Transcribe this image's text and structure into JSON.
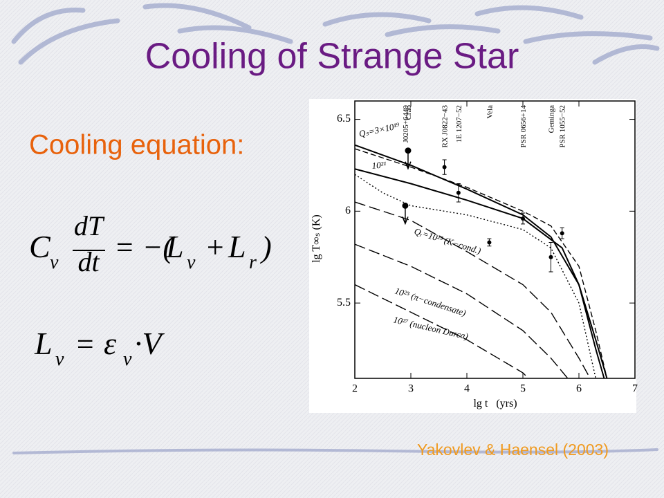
{
  "title": "Cooling of Strange Star",
  "subtitle": "Cooling equation:",
  "equations": [
    [
      "C",
      "v",
      "dT",
      "dt",
      "= −(",
      "L",
      "v",
      "+",
      "L",
      "r",
      ")"
    ],
    [
      "L",
      "v",
      "=",
      "ε",
      "v",
      "·V"
    ]
  ],
  "citation": "Yakovlev & Haensel (2003)",
  "chart_data": {
    "type": "line",
    "x_label": "lg t   (yrs)",
    "y_label": "lg T∞ₛ (K)",
    "xlim": [
      2,
      7
    ],
    "xticks": [
      2,
      3,
      4,
      5,
      6,
      7
    ],
    "ylim": [
      5.09,
      6.6
    ],
    "yticks": [
      5.5,
      6,
      6.5
    ],
    "series": [
      {
        "name": "Qₛ=3×10¹⁹",
        "style": "solid",
        "x": [
          2,
          3,
          4,
          5,
          5.5,
          6,
          6.3,
          6.5
        ],
        "values": [
          6.36,
          6.25,
          6.12,
          5.98,
          5.86,
          5.6,
          5.3,
          5.09
        ]
      },
      {
        "style": "dashed",
        "x": [
          2,
          3,
          4,
          5,
          5.5,
          6,
          6.3,
          6.5
        ],
        "values": [
          6.34,
          6.24,
          6.13,
          6.0,
          5.92,
          5.7,
          5.35,
          5.09
        ]
      },
      {
        "name": "10²¹",
        "style": "solid",
        "x": [
          2,
          3,
          4,
          5,
          5.7,
          6,
          6.3,
          6.45
        ],
        "values": [
          6.23,
          6.15,
          6.06,
          5.96,
          5.8,
          5.6,
          5.25,
          5.09
        ]
      },
      {
        "style": "dotted",
        "x": [
          2,
          2.5,
          3,
          4,
          5,
          5.5,
          6,
          6.3
        ],
        "values": [
          6.2,
          6.1,
          6.03,
          5.98,
          5.9,
          5.8,
          5.5,
          5.09
        ]
      },
      {
        "name": "Qᵣ=10²³ (K−cond.)",
        "style": "longdash",
        "x": [
          2,
          3,
          4,
          5,
          5.5,
          6,
          6.2
        ],
        "values": [
          6.05,
          5.95,
          5.78,
          5.6,
          5.45,
          5.2,
          5.09
        ]
      },
      {
        "name": "10²⁵ (π−condensate)",
        "style": "longdash",
        "x": [
          2,
          3,
          4,
          5,
          5.5,
          5.8
        ],
        "values": [
          5.82,
          5.7,
          5.55,
          5.35,
          5.2,
          5.09
        ]
      },
      {
        "name": "10²⁷ (nucleon Durca)",
        "style": "longdash",
        "x": [
          2,
          3,
          4,
          5,
          5.1
        ],
        "values": [
          5.6,
          5.45,
          5.3,
          5.12,
          5.09
        ]
      }
    ],
    "points": {
      "names": [
        "Crab",
        "J0205+6449",
        "RX J0822−43",
        "1E 1207−52",
        "Vela",
        "PSR 0656+14",
        "Geminga",
        "PSR 1055−52"
      ],
      "x": [
        2.95,
        2.9,
        3.6,
        3.85,
        4.4,
        5.0,
        5.5,
        5.7
      ],
      "values": [
        6.33,
        6.03,
        6.24,
        6.1,
        5.83,
        5.96,
        5.75,
        5.88
      ],
      "err": [
        null,
        null,
        0.04,
        0.05,
        0.02,
        0.03,
        0.08,
        0.03
      ]
    }
  }
}
